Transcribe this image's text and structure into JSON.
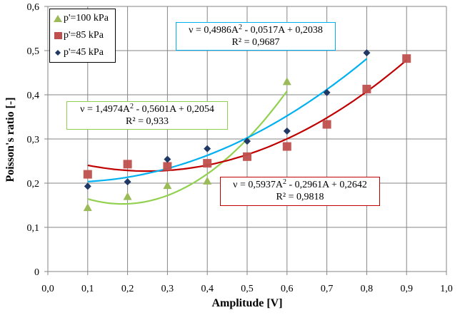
{
  "chart_data": {
    "type": "scatter",
    "title": "",
    "xlabel": "Amplitude [V]",
    "ylabel": "Poisson's ratio  [-]",
    "xlim": [
      0.0,
      1.0
    ],
    "ylim": [
      0,
      0.6
    ],
    "x_ticks": [
      "0,0",
      "0,1",
      "0,2",
      "0,3",
      "0,4",
      "0,5",
      "0,6",
      "0,7",
      "0,8",
      "0,9",
      "1,0"
    ],
    "x_tick_values": [
      0.0,
      0.1,
      0.2,
      0.3,
      0.4,
      0.5,
      0.6,
      0.7,
      0.8,
      0.9,
      1.0
    ],
    "y_ticks": [
      "0",
      "0,1",
      "0,2",
      "0,3",
      "0,4",
      "0,5",
      "0,6"
    ],
    "y_tick_values": [
      0,
      0.1,
      0.2,
      0.3,
      0.4,
      0.5,
      0.6
    ],
    "grid": true,
    "legend_position": "top-left",
    "series": [
      {
        "name": "p'=100 kPa",
        "marker": "triangle",
        "color": "#9BBB59",
        "x": [
          0.1,
          0.2,
          0.3,
          0.4,
          0.6
        ],
        "y": [
          0.145,
          0.17,
          0.195,
          0.205,
          0.43
        ],
        "trendline": {
          "type": "polynomial-2",
          "coefficients": [
            1.4974,
            -0.5601,
            0.2054
          ],
          "x_range": [
            0.1,
            0.6
          ],
          "color": "#92D050",
          "equation_text": "ν = 1,4974A² - 0,5601A + 0,2054",
          "equation_main": "ν = 1,4974A",
          "equation_rest": " - 0,5601A + 0,2054",
          "r2_text": "R² = 0,933"
        }
      },
      {
        "name": "p'=85 kPa",
        "marker": "square",
        "color": "#C0504D",
        "x": [
          0.1,
          0.2,
          0.3,
          0.4,
          0.5,
          0.6,
          0.7,
          0.8,
          0.9
        ],
        "y": [
          0.22,
          0.243,
          0.238,
          0.245,
          0.26,
          0.283,
          0.333,
          0.413,
          0.482
        ],
        "trendline": {
          "type": "polynomial-2",
          "coefficients": [
            0.5937,
            -0.2961,
            0.2642
          ],
          "x_range": [
            0.1,
            0.9
          ],
          "color": "#C00000",
          "equation_text": "ν = 0,5937A² - 0,2961A + 0,2642",
          "equation_main": "ν = 0,5937A",
          "equation_rest": " - 0,2961A + 0,2642",
          "r2_text": "R² = 0,9818"
        }
      },
      {
        "name": "p'=45 kPa",
        "marker": "diamond",
        "color": "#1F3864",
        "x": [
          0.1,
          0.2,
          0.3,
          0.4,
          0.5,
          0.6,
          0.7,
          0.8
        ],
        "y": [
          0.193,
          0.203,
          0.254,
          0.278,
          0.295,
          0.318,
          0.405,
          0.495
        ],
        "trendline": {
          "type": "polynomial-2",
          "coefficients": [
            0.4986,
            -0.0517,
            0.2038
          ],
          "x_range": [
            0.1,
            0.8
          ],
          "color": "#00B0F0",
          "equation_text": "ν = 0,4986A² - 0,0517A + 0,2038",
          "equation_main": "ν = 0,4986A",
          "equation_rest": " - 0,0517A + 0,2038",
          "r2_text": "R² = 0,9687"
        }
      }
    ]
  },
  "legend": {
    "items": [
      {
        "label": "p'=100 kPa",
        "marker": "triangle",
        "color": "#9BBB59"
      },
      {
        "label": "p'=85 kPa",
        "marker": "square",
        "color": "#C0504D"
      },
      {
        "label": "p'=45 kPa",
        "marker": "diamond",
        "color": "#1F3864"
      }
    ]
  },
  "equations": {
    "p45": {
      "main": "ν = 0,4986A",
      "sup": "2",
      "rest": " - 0,0517A + 0,2038",
      "r2": "R² = 0,9687",
      "border": "#00B0F0"
    },
    "p100": {
      "main": "ν = 1,4974A",
      "sup": "2",
      "rest": " - 0,5601A + 0,2054",
      "r2": "R² = 0,933",
      "border": "#92D050"
    },
    "p85": {
      "main": "ν = 0,5937A",
      "sup": "2",
      "rest": " - 0,2961A + 0,2642",
      "r2": "R² = 0,9818",
      "border": "#C00000"
    }
  }
}
